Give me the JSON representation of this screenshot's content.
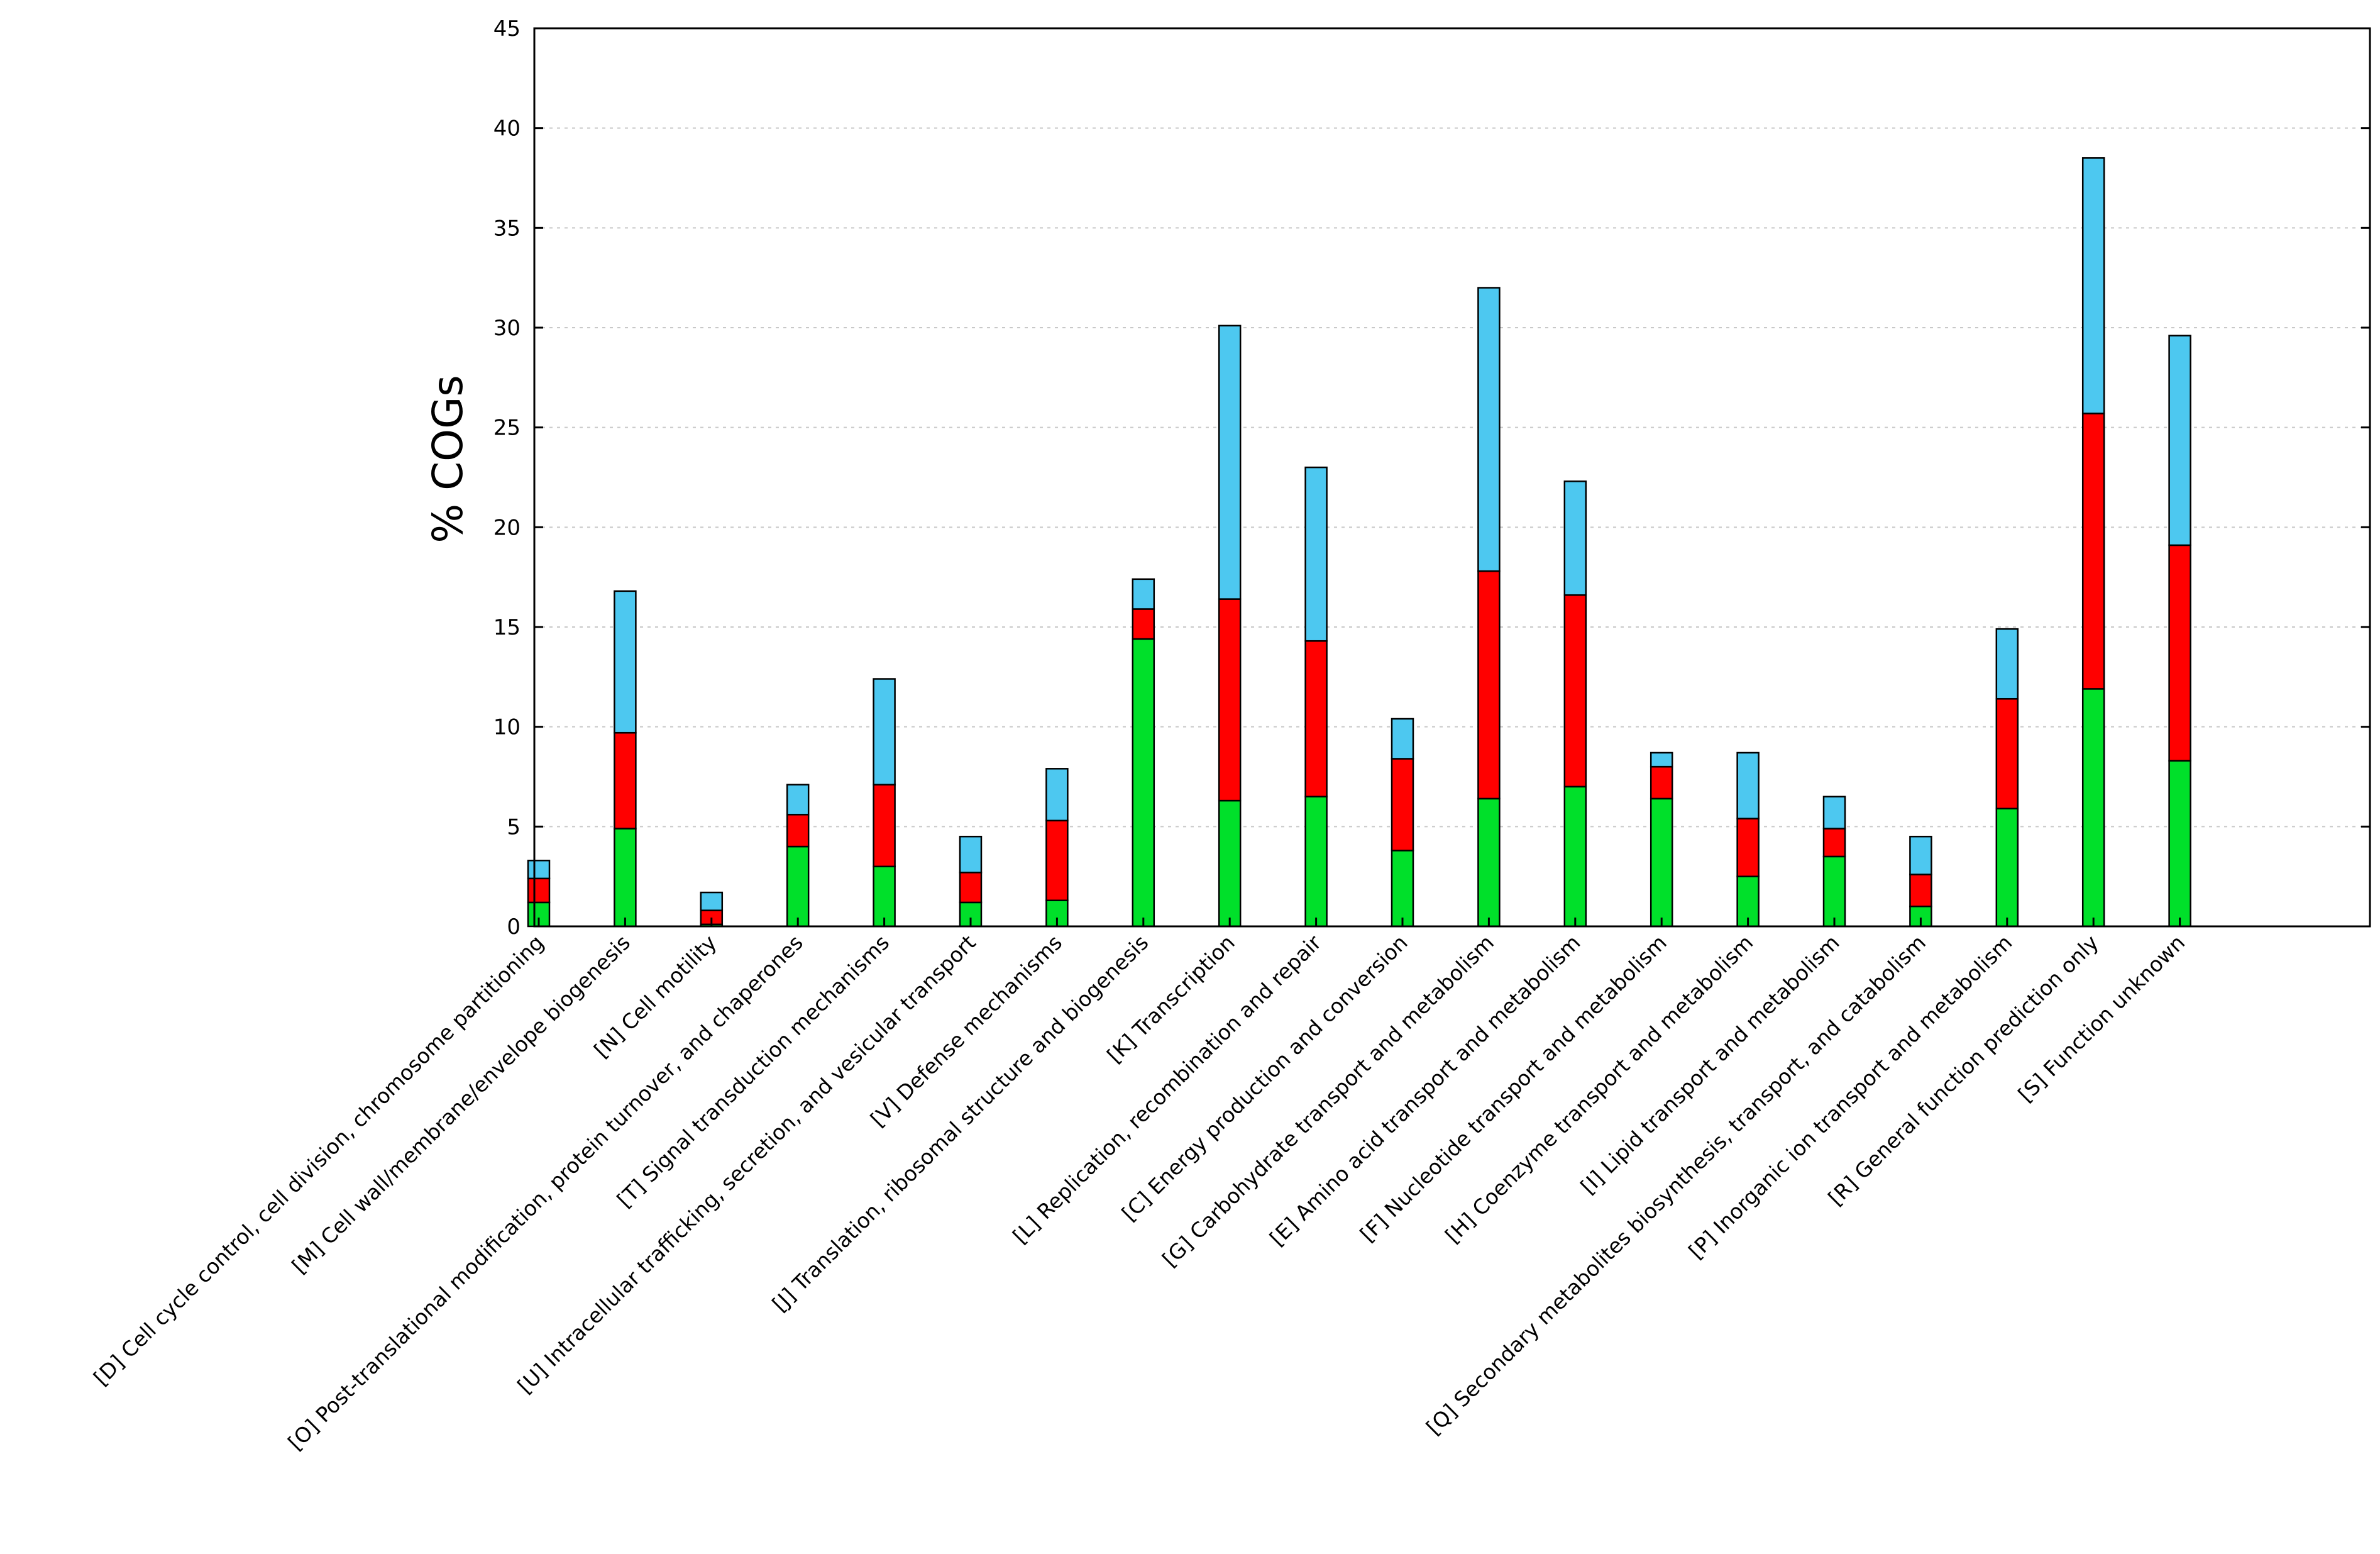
{
  "chart_data": {
    "type": "bar",
    "stacked": true,
    "title": "",
    "xlabel": "",
    "ylabel": "% COGs",
    "ylim": [
      0,
      45
    ],
    "yticks": [
      0,
      5,
      10,
      15,
      20,
      25,
      30,
      35,
      40,
      45
    ],
    "grid": "horizontal dotted",
    "legend": "none",
    "categories": [
      "[D] Cell cycle control, cell division, chromosome partitioning",
      "[M] Cell wall/membrane/envelope biogenesis",
      "[N] Cell motility",
      "[O] Post-translational modification, protein turnover, and chaperones",
      "[T] Signal transduction mechanisms",
      "[U] Intracellular trafficking, secretion, and vesicular transport",
      "[V] Defense mechanisms",
      "[J] Translation, ribosomal structure and biogenesis",
      "[K] Transcription",
      "[L] Replication, recombination and repair",
      "[C] Energy production and conversion",
      "[G] Carbohydrate transport and metabolism",
      "[E] Amino acid transport and metabolism",
      "[F] Nucleotide transport and metabolism",
      "[H] Coenzyme transport and metabolism",
      "[I] Lipid transport and metabolism",
      "[Q] Secondary metabolites biosynthesis, transport, and catabolism",
      "[P] Inorganic ion transport and metabolism",
      "[R] General function prediction only",
      "[S] Function unknown"
    ],
    "series": [
      {
        "color": "#00e02a",
        "values": [
          1.2,
          4.9,
          0.1,
          4.0,
          3.0,
          1.2,
          1.3,
          14.4,
          6.3,
          6.5,
          3.8,
          6.4,
          7.0,
          6.4,
          2.5,
          3.5,
          1.0,
          5.9,
          11.9,
          8.3
        ]
      },
      {
        "color": "#ff0000",
        "values": [
          1.2,
          4.8,
          0.7,
          1.6,
          4.1,
          1.5,
          4.0,
          1.5,
          10.1,
          7.8,
          4.6,
          11.4,
          9.6,
          1.6,
          2.9,
          1.4,
          1.6,
          5.5,
          13.8,
          10.8
        ]
      },
      {
        "color": "#4dc8f0",
        "values": [
          0.9,
          7.1,
          0.9,
          1.5,
          5.3,
          1.8,
          2.6,
          1.5,
          13.7,
          8.7,
          2.0,
          14.2,
          5.7,
          0.7,
          3.3,
          1.6,
          1.9,
          3.5,
          12.8,
          10.5
        ]
      }
    ]
  }
}
